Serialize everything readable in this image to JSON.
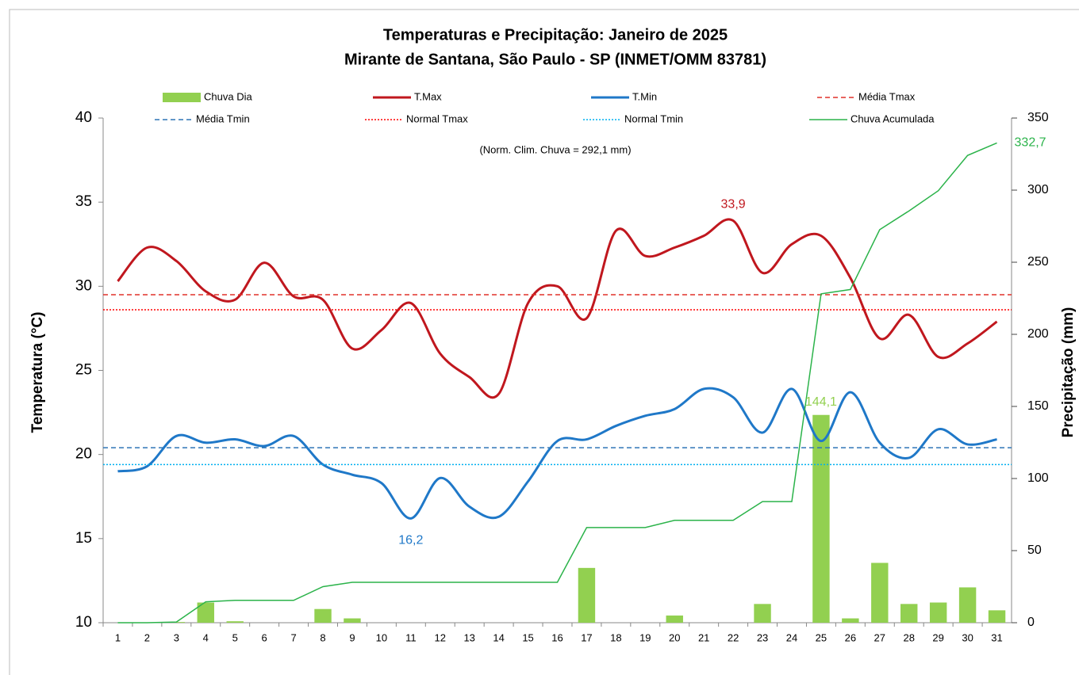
{
  "chart_data": {
    "type": "combo",
    "title": "Temperaturas e Precipitação: Janeiro de 2025",
    "subtitle": "Mirante de Santana, São Paulo - SP (INMET/OMM 83781)",
    "annotation": "(Norm. Clim. Chuva = 292,1 mm)",
    "y_label": "Temperatura (°C)",
    "y2_label": "Precipitação (mm)",
    "categories": [
      "1",
      "2",
      "3",
      "4",
      "5",
      "6",
      "7",
      "8",
      "9",
      "10",
      "11",
      "12",
      "13",
      "14",
      "15",
      "16",
      "17",
      "18",
      "19",
      "20",
      "21",
      "22",
      "23",
      "24",
      "25",
      "26",
      "27",
      "28",
      "29",
      "30",
      "31"
    ],
    "ylim": [
      10,
      40
    ],
    "yticks": [
      10,
      15,
      20,
      25,
      30,
      35,
      40
    ],
    "y2lim": [
      0,
      350
    ],
    "y2ticks": [
      0,
      50,
      100,
      150,
      200,
      250,
      300,
      350
    ],
    "series": [
      {
        "name": "Chuva Dia",
        "kind": "bar",
        "axis": "y2",
        "color": "#92d050",
        "values": [
          0,
          0,
          0.5,
          14,
          1,
          0,
          0,
          9.5,
          3,
          0,
          0,
          0,
          0,
          0,
          0,
          0,
          38,
          0,
          0,
          5,
          0,
          0,
          13,
          0,
          144.1,
          3,
          41.5,
          13,
          14,
          24.5,
          8.6
        ],
        "value_labels": [
          null,
          null,
          null,
          null,
          null,
          null,
          null,
          null,
          null,
          null,
          null,
          null,
          null,
          null,
          null,
          null,
          null,
          null,
          null,
          null,
          null,
          null,
          null,
          null,
          "144,1",
          null,
          null,
          null,
          null,
          null,
          null
        ],
        "label_color": "#92d050"
      },
      {
        "name": "T.Max",
        "kind": "line",
        "color": "#c0171e",
        "values": [
          30.3,
          32.3,
          31.5,
          29.7,
          29.2,
          31.4,
          29.4,
          29.2,
          26.3,
          27.4,
          29.0,
          26.0,
          24.6,
          23.6,
          29.0,
          30.0,
          28.1,
          33.3,
          31.8,
          32.3,
          33.0,
          33.9,
          30.8,
          32.5,
          33.0,
          30.5,
          26.9,
          28.3,
          25.8,
          26.6,
          27.9
        ],
        "value_labels": [
          null,
          null,
          null,
          null,
          null,
          null,
          null,
          null,
          null,
          null,
          null,
          null,
          null,
          null,
          null,
          null,
          null,
          null,
          null,
          null,
          null,
          "33,9",
          null,
          null,
          null,
          null,
          null,
          null,
          null,
          null,
          null
        ],
        "label_color": "#c0171e"
      },
      {
        "name": "T.Min",
        "kind": "line",
        "color": "#1f78c8",
        "values": [
          19.0,
          19.3,
          21.1,
          20.7,
          20.9,
          20.5,
          21.1,
          19.4,
          18.8,
          18.3,
          16.2,
          18.6,
          16.9,
          16.3,
          18.4,
          20.8,
          20.9,
          21.7,
          22.3,
          22.7,
          23.9,
          23.4,
          21.3,
          23.9,
          20.8,
          23.7,
          20.7,
          19.8,
          21.5,
          20.6,
          20.9
        ],
        "value_labels": [
          null,
          null,
          null,
          null,
          null,
          null,
          null,
          null,
          null,
          null,
          "16,2",
          null,
          null,
          null,
          null,
          null,
          null,
          null,
          null,
          null,
          null,
          null,
          null,
          null,
          null,
          null,
          null,
          null,
          null,
          null,
          null
        ],
        "label_color": "#1f78c8"
      },
      {
        "name": "Média Tmax",
        "kind": "hline",
        "color": "#e0302a",
        "dash": "6,4",
        "value": 29.5
      },
      {
        "name": "Média Tmin",
        "kind": "hline",
        "color": "#2e75b6",
        "dash": "6,4",
        "value": 20.4
      },
      {
        "name": "Normal Tmax",
        "kind": "hline",
        "color": "#ff0000",
        "dash": "2,2",
        "value": 28.6
      },
      {
        "name": "Normal Tmin",
        "kind": "hline",
        "color": "#00b0f0",
        "dash": "2,2",
        "value": 19.4
      },
      {
        "name": "Chuva Acumulada",
        "kind": "line",
        "axis": "y2",
        "color": "#2bb34a",
        "smooth": false,
        "values": [
          0,
          0,
          0.5,
          14.5,
          15.5,
          15.5,
          15.5,
          25,
          28,
          28,
          28,
          28,
          28,
          28,
          28,
          28,
          66,
          66,
          66,
          71,
          71,
          71,
          84,
          84,
          228.1,
          231.1,
          272.6,
          285.6,
          299.6,
          324.1,
          332.7
        ],
        "value_labels": [
          null,
          null,
          null,
          null,
          null,
          null,
          null,
          null,
          null,
          null,
          null,
          null,
          null,
          null,
          null,
          null,
          null,
          null,
          null,
          null,
          null,
          null,
          null,
          null,
          null,
          null,
          null,
          null,
          null,
          null,
          "332,7"
        ],
        "label_color": "#2bb34a"
      }
    ]
  }
}
